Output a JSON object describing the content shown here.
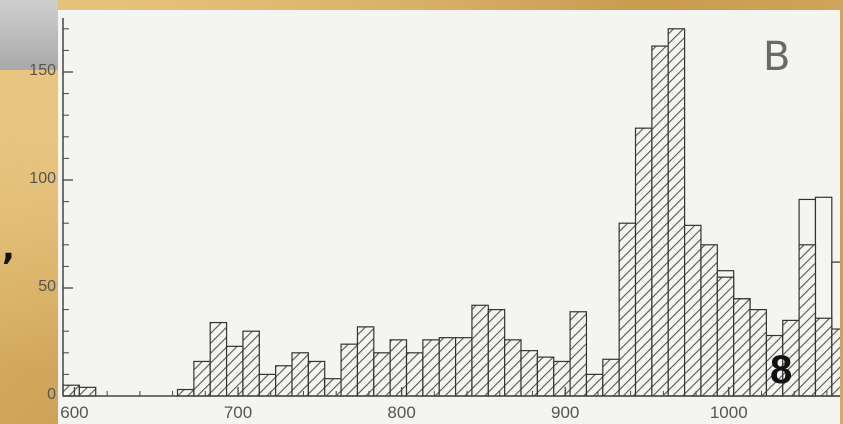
{
  "labels": {
    "panel_letter": "B",
    "figure_number": "8",
    "margin_mark": ","
  },
  "colors": {
    "bar_fill_hatch": "#555555",
    "bar_outline": "#333333",
    "plot_background": "#f4f4f1",
    "page_background": "#d9b36a",
    "axis": "#444444",
    "tick_text": "#555555"
  },
  "chart_data": {
    "type": "bar",
    "xlim": [
      593,
      1068
    ],
    "ylim": [
      0,
      175
    ],
    "bin_width": 10,
    "x_ticks": [
      600,
      700,
      800,
      900,
      1000
    ],
    "y_ticks": [
      0,
      50,
      100,
      150
    ],
    "legend": "none",
    "grid": false,
    "series": [
      {
        "style": "hatched",
        "bins": [
          [
            593,
            5
          ],
          [
            603,
            4
          ],
          [
            613,
            0
          ],
          [
            623,
            0
          ],
          [
            633,
            0
          ],
          [
            643,
            0
          ],
          [
            653,
            0
          ],
          [
            663,
            3
          ],
          [
            673,
            16
          ],
          [
            683,
            34
          ],
          [
            693,
            23
          ],
          [
            703,
            30
          ],
          [
            713,
            10
          ],
          [
            723,
            14
          ],
          [
            733,
            20
          ],
          [
            743,
            16
          ],
          [
            753,
            8
          ],
          [
            763,
            24
          ],
          [
            773,
            32
          ],
          [
            783,
            20
          ],
          [
            793,
            26
          ],
          [
            803,
            20
          ],
          [
            813,
            26
          ],
          [
            823,
            27
          ],
          [
            833,
            27
          ],
          [
            843,
            42
          ],
          [
            853,
            40
          ],
          [
            863,
            26
          ],
          [
            873,
            21
          ],
          [
            883,
            18
          ],
          [
            893,
            16
          ],
          [
            903,
            39
          ],
          [
            913,
            10
          ],
          [
            923,
            17
          ],
          [
            933,
            80
          ],
          [
            943,
            124
          ],
          [
            953,
            162
          ],
          [
            963,
            170
          ],
          [
            973,
            79
          ],
          [
            983,
            70
          ],
          [
            993,
            55
          ],
          [
            1003,
            45
          ],
          [
            1013,
            40
          ],
          [
            1023,
            28
          ],
          [
            1033,
            35
          ],
          [
            1043,
            70
          ],
          [
            1053,
            36
          ],
          [
            1063,
            31
          ]
        ]
      },
      {
        "style": "open",
        "bins": [
          [
            993,
            58
          ],
          [
            1003,
            45
          ],
          [
            1043,
            91
          ],
          [
            1053,
            92
          ],
          [
            1063,
            62
          ]
        ]
      }
    ]
  }
}
